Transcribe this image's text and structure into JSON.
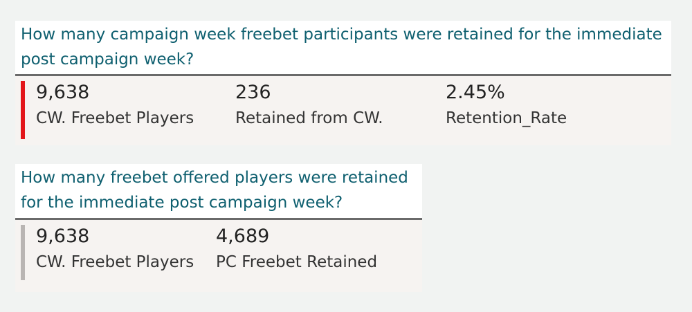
{
  "cards": [
    {
      "title": "How many campaign week freebet participants were retained for the immediate post campaign week?",
      "accent_color": "#e3161b",
      "kpis": [
        {
          "value": "9,638",
          "label": "CW. Freebet Players"
        },
        {
          "value": "236",
          "label": "Retained from CW."
        },
        {
          "value": "2.45%",
          "label": "Retention_Rate"
        }
      ]
    },
    {
      "title": "How many freebet offered players were retained for the immediate post campaign week?",
      "accent_color": "#b9b5b3",
      "kpis": [
        {
          "value": "9,638",
          "label": "CW. Freebet Players"
        },
        {
          "value": "4,689",
          "label": "PC Freebet Retained"
        }
      ]
    }
  ],
  "colors": {
    "title_text": "#0e5f6f",
    "background": "#f1f3f2",
    "kpi_background": "#f6f3f1"
  }
}
